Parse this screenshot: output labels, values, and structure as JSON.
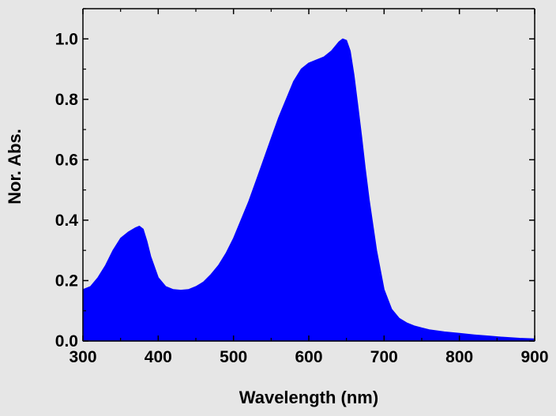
{
  "chart_data": {
    "type": "area",
    "title": "",
    "xlabel": "Wavelength (nm)",
    "ylabel": "Nor. Abs.",
    "xlim": [
      300,
      900
    ],
    "ylim": [
      0,
      1.1
    ],
    "x_ticks": [
      300,
      400,
      500,
      600,
      700,
      800,
      900
    ],
    "x_tick_labels": [
      "300",
      "400",
      "500",
      "600",
      "700",
      "800",
      "900"
    ],
    "y_ticks": [
      0,
      0.2,
      0.4,
      0.6,
      0.8,
      1.0
    ],
    "y_tick_labels": [
      "0.0",
      "0.2",
      "0.4",
      "0.6",
      "0.8",
      "1.0"
    ],
    "grid": false,
    "legend": "none",
    "fill_color": "#0000ff",
    "background_color": "#e6e6e6",
    "series": [
      {
        "x": [
          300,
          310,
          320,
          330,
          340,
          350,
          360,
          370,
          375,
          380,
          385,
          390,
          400,
          410,
          420,
          430,
          440,
          450,
          460,
          470,
          480,
          490,
          500,
          510,
          520,
          530,
          540,
          550,
          560,
          570,
          580,
          590,
          600,
          610,
          620,
          630,
          640,
          645,
          650,
          655,
          660,
          665,
          670,
          675,
          680,
          690,
          700,
          710,
          720,
          730,
          740,
          750,
          760,
          780,
          800,
          820,
          840,
          860,
          880,
          900
        ],
        "values": [
          0.17,
          0.18,
          0.21,
          0.25,
          0.3,
          0.34,
          0.36,
          0.375,
          0.38,
          0.37,
          0.33,
          0.28,
          0.21,
          0.18,
          0.17,
          0.168,
          0.17,
          0.18,
          0.195,
          0.22,
          0.25,
          0.29,
          0.34,
          0.4,
          0.46,
          0.53,
          0.6,
          0.67,
          0.74,
          0.8,
          0.86,
          0.9,
          0.92,
          0.93,
          0.94,
          0.96,
          0.99,
          1.0,
          0.995,
          0.96,
          0.88,
          0.78,
          0.68,
          0.57,
          0.47,
          0.3,
          0.17,
          0.105,
          0.075,
          0.06,
          0.05,
          0.043,
          0.037,
          0.03,
          0.025,
          0.02,
          0.016,
          0.012,
          0.009,
          0.007
        ]
      }
    ]
  }
}
